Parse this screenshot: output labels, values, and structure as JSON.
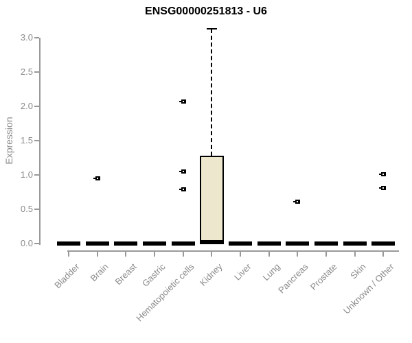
{
  "page": {
    "background": "#ffffff"
  },
  "chart_data": {
    "type": "boxplot",
    "title": "ENSG00000251813 - U6",
    "xlabel": "",
    "ylabel": "Expression",
    "ylim": [
      0,
      3.2
    ],
    "grid": false,
    "legend": null,
    "y_ticks": [
      0.0,
      0.5,
      1.0,
      1.5,
      2.0,
      2.5,
      3.0
    ],
    "y_tick_labels": [
      "0.0",
      "0.5",
      "1.0",
      "1.5",
      "2.0",
      "2.5",
      "3.0"
    ],
    "categories": [
      "Bladder",
      "Brain",
      "Breast",
      "Gastric",
      "Hematopoietic cells",
      "Kidney",
      "Liver",
      "Lung",
      "Pancreas",
      "Prostate",
      "Skin",
      "Unknown / Other"
    ],
    "series": [
      {
        "category": "Bladder",
        "q1": 0,
        "median": 0,
        "q3": 0,
        "whisker_low": 0,
        "whisker_high": 0,
        "outliers": []
      },
      {
        "category": "Brain",
        "q1": 0,
        "median": 0,
        "q3": 0,
        "whisker_low": 0,
        "whisker_high": 0,
        "outliers": [
          0.95
        ]
      },
      {
        "category": "Breast",
        "q1": 0,
        "median": 0,
        "q3": 0,
        "whisker_low": 0,
        "whisker_high": 0,
        "outliers": []
      },
      {
        "category": "Gastric",
        "q1": 0,
        "median": 0,
        "q3": 0,
        "whisker_low": 0,
        "whisker_high": 0,
        "outliers": []
      },
      {
        "category": "Hematopoietic cells",
        "q1": 0,
        "median": 0,
        "q3": 0,
        "whisker_low": 0,
        "whisker_high": 0,
        "outliers": [
          2.07,
          1.05,
          0.79
        ]
      },
      {
        "category": "Kidney",
        "q1": 0,
        "median": 0.02,
        "q3": 1.28,
        "whisker_low": 0,
        "whisker_high": 3.13,
        "outliers": []
      },
      {
        "category": "Liver",
        "q1": 0,
        "median": 0,
        "q3": 0,
        "whisker_low": 0,
        "whisker_high": 0,
        "outliers": []
      },
      {
        "category": "Lung",
        "q1": 0,
        "median": 0,
        "q3": 0,
        "whisker_low": 0,
        "whisker_high": 0,
        "outliers": []
      },
      {
        "category": "Pancreas",
        "q1": 0,
        "median": 0,
        "q3": 0,
        "whisker_low": 0,
        "whisker_high": 0,
        "outliers": [
          0.61
        ]
      },
      {
        "category": "Prostate",
        "q1": 0,
        "median": 0,
        "q3": 0,
        "whisker_low": 0,
        "whisker_high": 0,
        "outliers": []
      },
      {
        "category": "Skin",
        "q1": 0,
        "median": 0,
        "q3": 0,
        "whisker_low": 0,
        "whisker_high": 0,
        "outliers": []
      },
      {
        "category": "Unknown / Other",
        "q1": 0,
        "median": 0,
        "q3": 0,
        "whisker_low": 0,
        "whisker_high": 0,
        "outliers": [
          1.01,
          0.81
        ]
      }
    ],
    "colors": {
      "box_fill": "#ECE7CD",
      "box_border": "#000000",
      "bar": "#000000",
      "outlier": "#000000",
      "axis": "#999999",
      "tick_text": "#8A8A8A",
      "title_text": "#000000"
    }
  }
}
